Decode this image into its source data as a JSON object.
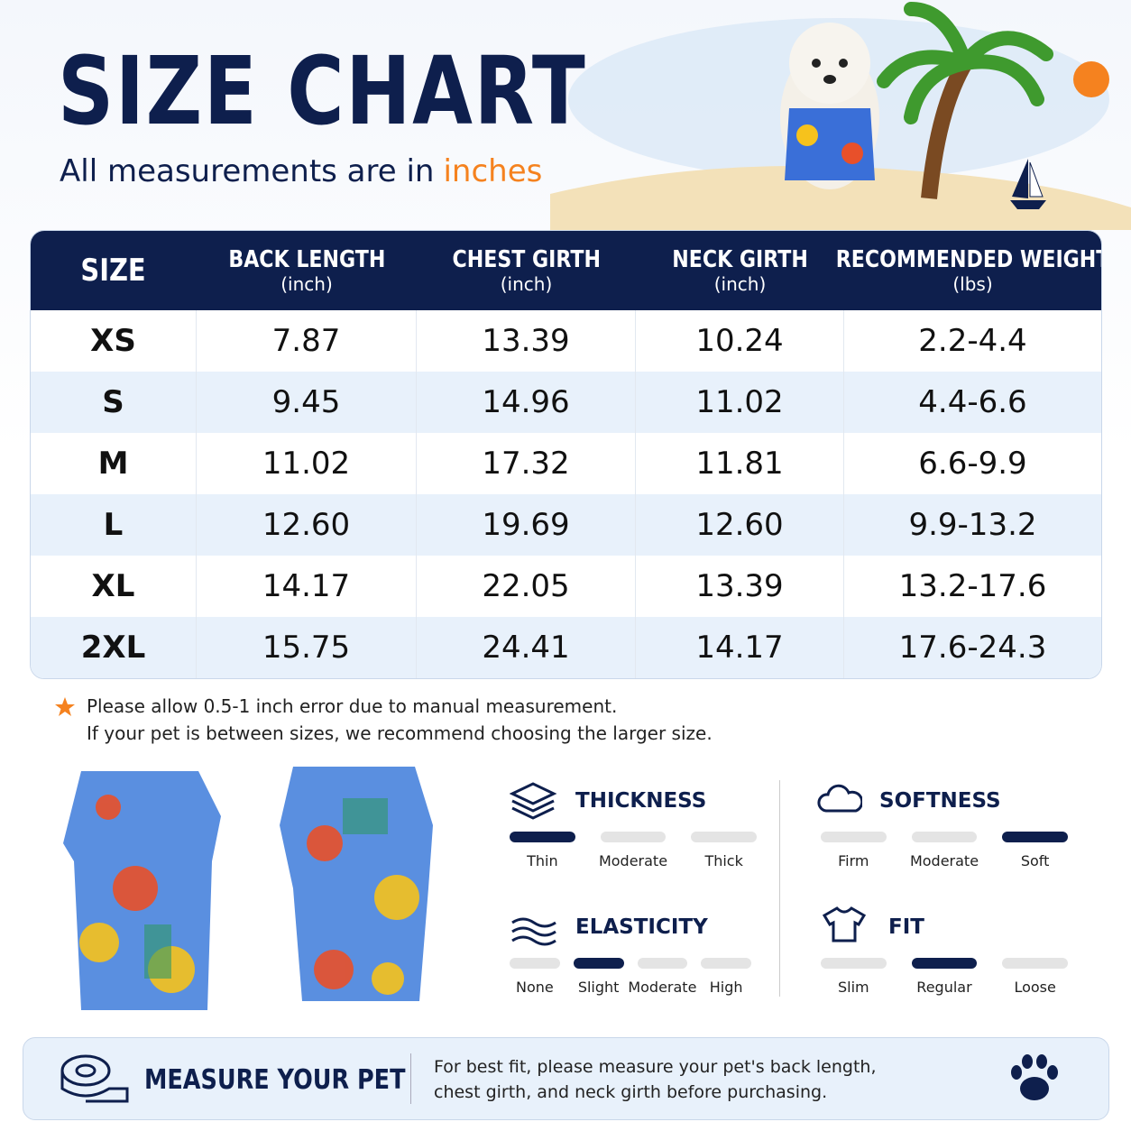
{
  "header": {
    "title": "SIZE CHART",
    "subtitle": "All measurements are in",
    "subtitle_unit": "inches"
  },
  "table": {
    "headers": [
      {
        "title": "SIZE"
      },
      {
        "title": "BACK LENGTH",
        "unit": "(inch)"
      },
      {
        "title": "CHEST GIRTH",
        "unit": "(inch)"
      },
      {
        "title": "NECK GIRTH",
        "unit": "(inch)"
      },
      {
        "title": "RECOMMENDED WEIGHT",
        "unit": "(lbs)"
      }
    ],
    "rows": [
      [
        "XS",
        "7.87",
        "13.39",
        "10.24",
        "2.2-4.4"
      ],
      [
        "S",
        "9.45",
        "14.96",
        "11.02",
        "4.4-6.6"
      ],
      [
        "M",
        "11.02",
        "17.32",
        "11.81",
        "6.6-9.9"
      ],
      [
        "L",
        "12.60",
        "19.69",
        "12.60",
        "9.9-13.2"
      ],
      [
        "XL",
        "14.17",
        "22.05",
        "13.39",
        "13.2-17.6"
      ],
      [
        "2XL",
        "15.75",
        "24.41",
        "14.17",
        "17.6-24.3"
      ]
    ]
  },
  "notes": [
    "Please allow 0.5-1 inch error due to manual measurement.",
    "If your pet is between sizes, we recommend choosing the larger size."
  ],
  "attributes": [
    {
      "name": "THICKNESS",
      "options": [
        "Thin",
        "Moderate",
        "Thick"
      ],
      "selected": 0
    },
    {
      "name": "SOFTNESS",
      "options": [
        "Firm",
        "Moderate",
        "Soft"
      ],
      "selected": 2
    },
    {
      "name": "ELASTICITY",
      "options": [
        "None",
        "Slight",
        "Moderate",
        "High"
      ],
      "selected": 1
    },
    {
      "name": "FIT",
      "options": [
        "Slim",
        "Regular",
        "Loose"
      ],
      "selected": 1
    }
  ],
  "footer": {
    "title": "MEASURE YOUR PET",
    "lines": [
      "For best fit, please measure your pet's back length,",
      "chest girth, and neck girth before purchasing."
    ]
  }
}
